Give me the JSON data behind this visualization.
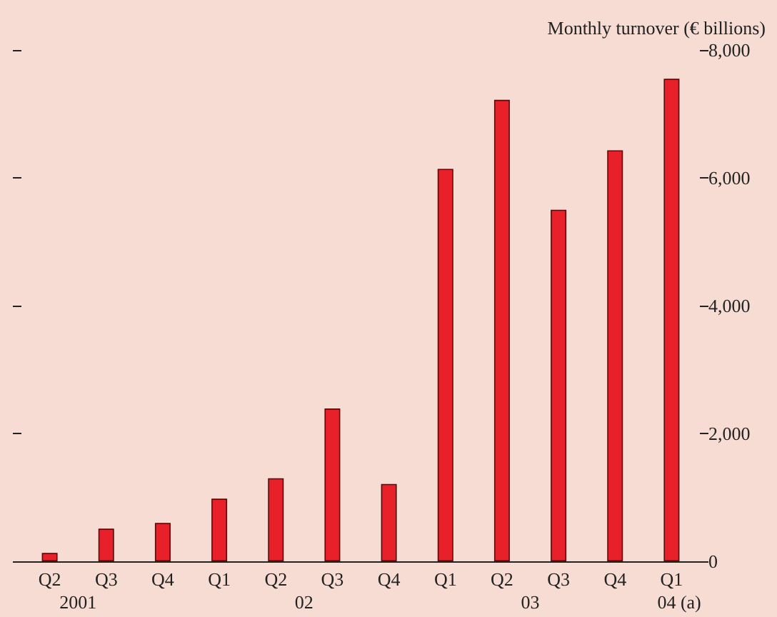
{
  "chart_data": {
    "type": "bar",
    "ylabel": "Monthly turnover (€ billions)",
    "categories": [
      "Q2",
      "Q3",
      "Q4",
      "Q1",
      "Q2",
      "Q3",
      "Q4",
      "Q1",
      "Q2",
      "Q3",
      "Q4",
      "Q1"
    ],
    "values": [
      130,
      510,
      600,
      980,
      1300,
      2390,
      1210,
      6140,
      7220,
      5500,
      6430,
      7550
    ],
    "color": "#e8202a",
    "ylim": [
      0,
      8000
    ],
    "yticks": [
      {
        "value": 0,
        "label": "0"
      },
      {
        "value": 2000,
        "label": "2,000"
      },
      {
        "value": 4000,
        "label": "4,000"
      },
      {
        "value": 6000,
        "label": "6,000"
      },
      {
        "value": 8000,
        "label": "8,000"
      }
    ],
    "annotations": [
      "2001",
      "02",
      "03",
      "04 (a)"
    ],
    "grid": false
  }
}
